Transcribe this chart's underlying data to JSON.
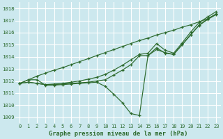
{
  "bg_color": "#cce8ee",
  "grid_color": "#ffffff",
  "line_color": "#2d6a2d",
  "text_color": "#2d6a2d",
  "xlabel": "Graphe pression niveau de la mer (hPa)",
  "ylim": [
    1008.5,
    1018.5
  ],
  "xlim": [
    -0.5,
    23.5
  ],
  "yticks": [
    1009,
    1010,
    1011,
    1012,
    1013,
    1014,
    1015,
    1016,
    1017,
    1018
  ],
  "xticks": [
    0,
    1,
    2,
    3,
    4,
    5,
    6,
    7,
    8,
    9,
    10,
    11,
    12,
    13,
    14,
    15,
    16,
    17,
    18,
    19,
    20,
    21,
    22,
    23
  ],
  "series": [
    [
      1011.8,
      1012.1,
      1012.1,
      1011.65,
      1011.65,
      1011.7,
      1011.75,
      1011.8,
      1011.85,
      1011.9,
      1011.55,
      1010.9,
      1010.2,
      1009.3,
      1009.15,
      1014.1,
      1014.75,
      1014.3,
      1014.2,
      1015.0,
      1015.8,
      1016.65,
      1017.15,
      1017.55
    ],
    [
      1011.8,
      1011.9,
      1011.8,
      1011.7,
      1011.7,
      1011.75,
      1011.8,
      1011.85,
      1011.9,
      1012.0,
      1012.1,
      1012.5,
      1012.9,
      1013.35,
      1014.1,
      1014.1,
      1014.6,
      1014.35,
      1014.2,
      1015.0,
      1015.85,
      1016.6,
      1017.1,
      1017.5
    ],
    [
      1011.8,
      1011.9,
      1011.8,
      1011.7,
      1011.75,
      1011.8,
      1011.9,
      1012.0,
      1012.15,
      1012.3,
      1012.55,
      1012.9,
      1013.3,
      1013.75,
      1014.2,
      1014.3,
      1015.1,
      1014.55,
      1014.3,
      1015.15,
      1016.05,
      1016.85,
      1017.3,
      1017.75
    ]
  ],
  "series_diagonal": [
    1011.8,
    1012.1,
    1012.4,
    1012.65,
    1012.9,
    1013.1,
    1013.35,
    1013.6,
    1013.85,
    1014.1,
    1014.35,
    1014.6,
    1014.85,
    1015.1,
    1015.35,
    1015.55,
    1015.8,
    1016.0,
    1016.2,
    1016.45,
    1016.65,
    1016.9,
    1017.15,
    1017.55
  ]
}
